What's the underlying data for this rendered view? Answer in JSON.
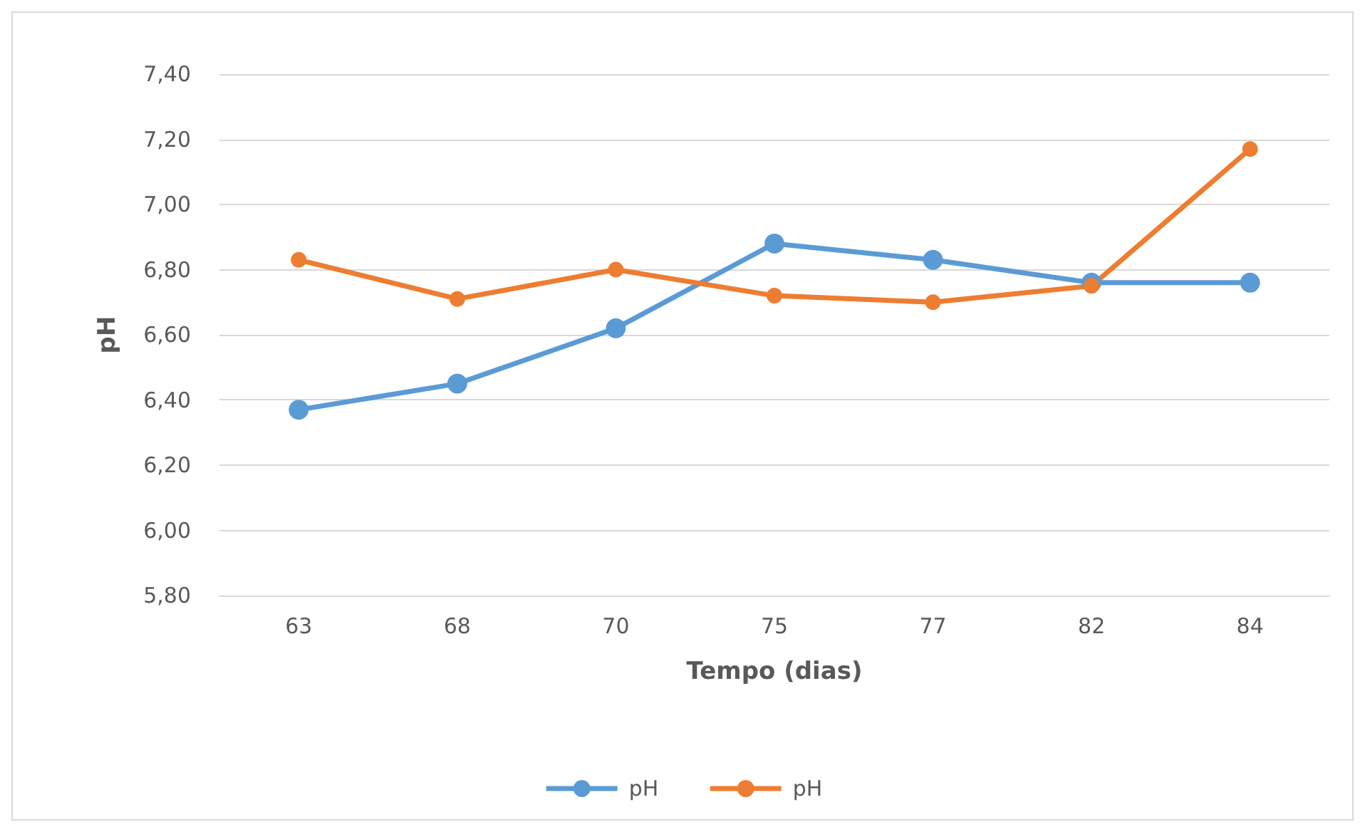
{
  "chart_data": {
    "type": "line",
    "xlabel": "Tempo (dias)",
    "ylabel": "pH",
    "categories": [
      "63",
      "68",
      "70",
      "75",
      "77",
      "82",
      "84"
    ],
    "series": [
      {
        "name": "pH",
        "color": "#5b9bd5",
        "values": [
          6.37,
          6.45,
          6.62,
          6.88,
          6.83,
          6.76,
          6.76
        ]
      },
      {
        "name": "pH",
        "color": "#ed7d31",
        "values": [
          6.83,
          6.71,
          6.8,
          6.72,
          6.7,
          6.75,
          7.17
        ]
      }
    ],
    "ylim": [
      5.8,
      7.4
    ],
    "yticks": [
      {
        "value": 5.8,
        "label": "5,80"
      },
      {
        "value": 6.0,
        "label": "6,00"
      },
      {
        "value": 6.2,
        "label": "6,20"
      },
      {
        "value": 6.4,
        "label": "6,40"
      },
      {
        "value": 6.6,
        "label": "6,60"
      },
      {
        "value": 6.8,
        "label": "6,80"
      },
      {
        "value": 7.0,
        "label": "7,00"
      },
      {
        "value": 7.2,
        "label": "7,20"
      },
      {
        "value": 7.4,
        "label": "7,40"
      }
    ],
    "grid": "y",
    "legend": "bottom",
    "marker": "circle",
    "line_style": "solid"
  }
}
